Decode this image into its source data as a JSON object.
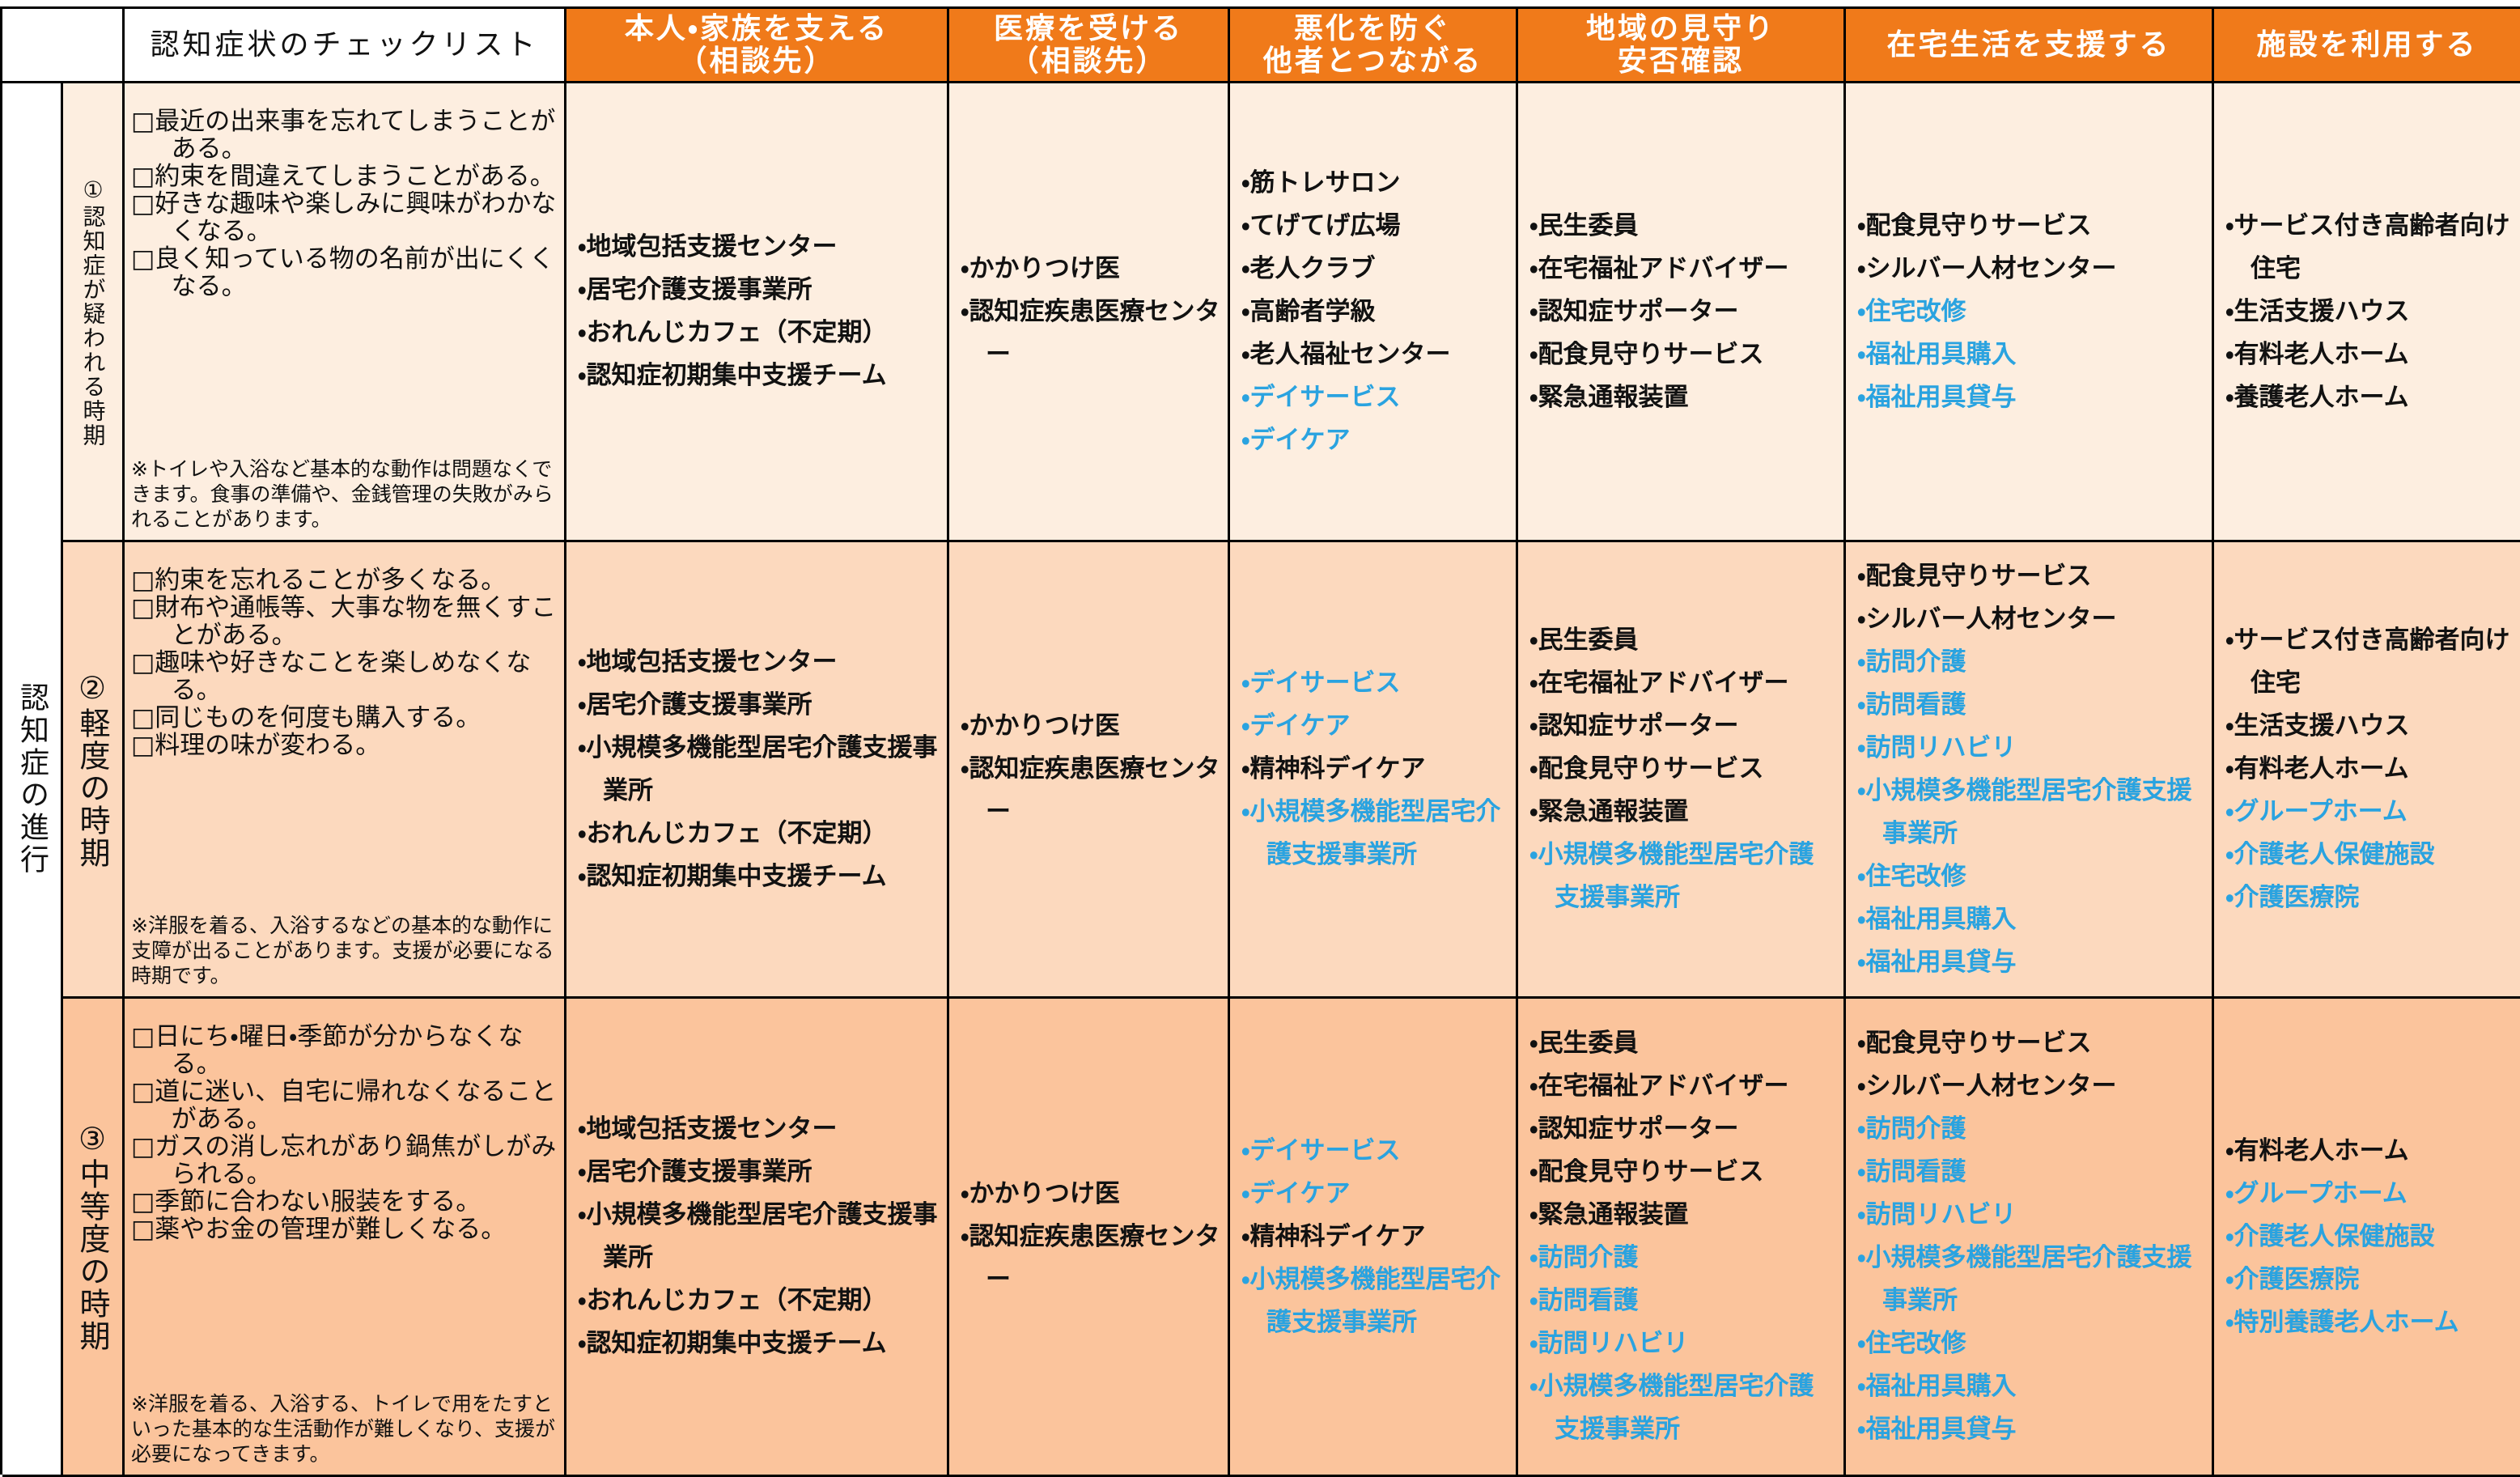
{
  "header": {
    "checklist_title": "認知症状のチェックリスト",
    "columns": [
      [
        "本人・家族を支える",
        "（相談先）"
      ],
      [
        "医療を受ける",
        "（相談先）"
      ],
      [
        "悪化を防ぐ",
        "他者とつながる"
      ],
      [
        "地域の見守り",
        "安否確認"
      ],
      [
        "在宅生活を支援する"
      ],
      [
        "施設を利用する"
      ]
    ]
  },
  "progress_label": "認知症の進行",
  "rows": [
    {
      "stage": "①認知症が疑われる時期",
      "color": "#fdeee0",
      "checklist": [
        "□最近の出来事を忘れてしまうことがある。",
        "□約束を間違えてしまうことがある。",
        "□好きな趣味や楽しみに興味がわかなくなる。",
        "□良く知っている物の名前が出にくくなる。"
      ],
      "note": "※トイレや入浴など基本的な動作は問題なくできます。食事の準備や、金銭管理の失敗がみられることがあります。",
      "cells": [
        [
          {
            "text": "・地域包括支援センター",
            "color": "#111111"
          },
          {
            "text": "・居宅介護支援事業所",
            "color": "#111111"
          },
          {
            "text": "・おれんじカフェ（不定期）",
            "color": "#111111"
          },
          {
            "text": "・認知症初期集中支援チーム",
            "color": "#111111"
          }
        ],
        [
          {
            "text": "・かかりつけ医",
            "color": "#111111"
          },
          {
            "text": "・認知症疾患医療センター",
            "color": "#111111"
          }
        ],
        [
          {
            "text": "・筋トレサロン",
            "color": "#111111"
          },
          {
            "text": "・てげてげ広場",
            "color": "#111111"
          },
          {
            "text": "・老人クラブ",
            "color": "#111111"
          },
          {
            "text": "・高齢者学級",
            "color": "#111111"
          },
          {
            "text": "・老人福祉センター",
            "color": "#111111"
          },
          {
            "text": "・デイサービス",
            "color": "#2aa3e0"
          },
          {
            "text": "・デイケア",
            "color": "#2aa3e0"
          }
        ],
        [
          {
            "text": "・民生委員",
            "color": "#111111"
          },
          {
            "text": "・在宅福祉アドバイザー",
            "color": "#111111"
          },
          {
            "text": "・認知症サポーター",
            "color": "#111111"
          },
          {
            "text": "・配食見守りサービス",
            "color": "#111111"
          },
          {
            "text": "・緊急通報装置",
            "color": "#111111"
          }
        ],
        [
          {
            "text": "・配食見守りサービス",
            "color": "#111111"
          },
          {
            "text": "・シルバー人材センター",
            "color": "#111111"
          },
          {
            "text": "・住宅改修",
            "color": "#2aa3e0"
          },
          {
            "text": "・福祉用具購入",
            "color": "#2aa3e0"
          },
          {
            "text": "・福祉用具貸与",
            "color": "#2aa3e0"
          }
        ],
        [
          {
            "text": "・サービス付き高齢者向け住宅",
            "color": "#111111"
          },
          {
            "text": "・生活支援ハウス",
            "color": "#111111"
          },
          {
            "text": "・有料老人ホーム",
            "color": "#111111"
          },
          {
            "text": "・養護老人ホーム",
            "color": "#111111"
          }
        ]
      ]
    },
    {
      "stage": "②軽度の時期",
      "color": "#fcd9be",
      "checklist": [
        "□約束を忘れることが多くなる。",
        "□財布や通帳等、大事な物を無くすことがある。",
        "□趣味や好きなことを楽しめなくなる。",
        "□同じものを何度も購入する。",
        "□料理の味が変わる。"
      ],
      "note": "※洋服を着る、入浴するなどの基本的な動作に支障が出ることがあります。支援が必要になる時期です。",
      "cells": [
        [
          {
            "text": "・地域包括支援センター",
            "color": "#111111"
          },
          {
            "text": "・居宅介護支援事業所",
            "color": "#111111"
          },
          {
            "text": "・小規模多機能型居宅介護支援事業所",
            "color": "#111111"
          },
          {
            "text": "・おれんじカフェ（不定期）",
            "color": "#111111"
          },
          {
            "text": "・認知症初期集中支援チーム",
            "color": "#111111"
          }
        ],
        [
          {
            "text": "・かかりつけ医",
            "color": "#111111"
          },
          {
            "text": "・認知症疾患医療センター",
            "color": "#111111"
          }
        ],
        [
          {
            "text": "・デイサービス",
            "color": "#2aa3e0"
          },
          {
            "text": "・デイケア",
            "color": "#2aa3e0"
          },
          {
            "text": "・精神科デイケア",
            "color": "#111111"
          },
          {
            "text": "・小規模多機能型居宅介護支援事業所",
            "color": "#2aa3e0"
          }
        ],
        [
          {
            "text": "・民生委員",
            "color": "#111111"
          },
          {
            "text": "・在宅福祉アドバイザー",
            "color": "#111111"
          },
          {
            "text": "・認知症サポーター",
            "color": "#111111"
          },
          {
            "text": "・配食見守りサービス",
            "color": "#111111"
          },
          {
            "text": "・緊急通報装置",
            "color": "#111111"
          },
          {
            "text": "・小規模多機能型居宅介護支援事業所",
            "color": "#2aa3e0"
          }
        ],
        [
          {
            "text": "・配食見守りサービス",
            "color": "#111111"
          },
          {
            "text": "・シルバー人材センター",
            "color": "#111111"
          },
          {
            "text": "・訪問介護",
            "color": "#2aa3e0"
          },
          {
            "text": "・訪問看護",
            "color": "#2aa3e0"
          },
          {
            "text": "・訪問リハビリ",
            "color": "#2aa3e0"
          },
          {
            "text": "・小規模多機能型居宅介護支援事業所",
            "color": "#2aa3e0"
          },
          {
            "text": "・住宅改修",
            "color": "#2aa3e0"
          },
          {
            "text": "・福祉用具購入",
            "color": "#2aa3e0"
          },
          {
            "text": "・福祉用具貸与",
            "color": "#2aa3e0"
          }
        ],
        [
          {
            "text": "・サービス付き高齢者向け住宅",
            "color": "#111111"
          },
          {
            "text": "・生活支援ハウス",
            "color": "#111111"
          },
          {
            "text": "・有料老人ホーム",
            "color": "#111111"
          },
          {
            "text": "・グループホーム",
            "color": "#2aa3e0"
          },
          {
            "text": "・介護老人保健施設",
            "color": "#2aa3e0"
          },
          {
            "text": "・介護医療院",
            "color": "#2aa3e0"
          }
        ]
      ]
    },
    {
      "stage": "③中等度の時期",
      "color": "#fbc49c",
      "checklist": [
        "□日にち・曜日・季節が分からなくなる。",
        "□道に迷い、自宅に帰れなくなることがある。",
        "□ガスの消し忘れがあり鍋焦がしがみられる。",
        "□季節に合わない服装をする。",
        "□薬やお金の管理が難しくなる。"
      ],
      "note": "※洋服を着る、入浴する、トイレで用をたすといった基本的な生活動作が難しくなり、支援が必要になってきます。",
      "cells": [
        [
          {
            "text": "・地域包括支援センター",
            "color": "#111111"
          },
          {
            "text": "・居宅介護支援事業所",
            "color": "#111111"
          },
          {
            "text": "・小規模多機能型居宅介護支援事業所",
            "color": "#111111"
          },
          {
            "text": "・おれんじカフェ（不定期）",
            "color": "#111111"
          },
          {
            "text": "・認知症初期集中支援チーム",
            "color": "#111111"
          }
        ],
        [
          {
            "text": "・かかりつけ医",
            "color": "#111111"
          },
          {
            "text": "・認知症疾患医療センター",
            "color": "#111111"
          }
        ],
        [
          {
            "text": "・デイサービス",
            "color": "#2aa3e0"
          },
          {
            "text": "・デイケア",
            "color": "#2aa3e0"
          },
          {
            "text": "・精神科デイケア",
            "color": "#111111"
          },
          {
            "text": "・小規模多機能型居宅介護支援事業所",
            "color": "#2aa3e0"
          }
        ],
        [
          {
            "text": "・民生委員",
            "color": "#111111"
          },
          {
            "text": "・在宅福祉アドバイザー",
            "color": "#111111"
          },
          {
            "text": "・認知症サポーター",
            "color": "#111111"
          },
          {
            "text": "・配食見守りサービス",
            "color": "#111111"
          },
          {
            "text": "・緊急通報装置",
            "color": "#111111"
          },
          {
            "text": "・訪問介護",
            "color": "#2aa3e0"
          },
          {
            "text": "・訪問看護",
            "color": "#2aa3e0"
          },
          {
            "text": "・訪問リハビリ",
            "color": "#2aa3e0"
          },
          {
            "text": "・小規模多機能型居宅介護支援事業所",
            "color": "#2aa3e0"
          }
        ],
        [
          {
            "text": "・配食見守りサービス",
            "color": "#111111"
          },
          {
            "text": "・シルバー人材センター",
            "color": "#111111"
          },
          {
            "text": "・訪問介護",
            "color": "#2aa3e0"
          },
          {
            "text": "・訪問看護",
            "color": "#2aa3e0"
          },
          {
            "text": "・訪問リハビリ",
            "color": "#2aa3e0"
          },
          {
            "text": "・小規模多機能型居宅介護支援事業所",
            "color": "#2aa3e0"
          },
          {
            "text": "・住宅改修",
            "color": "#2aa3e0"
          },
          {
            "text": "・福祉用具購入",
            "color": "#2aa3e0"
          },
          {
            "text": "・福祉用具貸与",
            "color": "#2aa3e0"
          }
        ],
        [
          {
            "text": "・有料老人ホーム",
            "color": "#111111"
          },
          {
            "text": "・グループホーム",
            "color": "#2aa3e0"
          },
          {
            "text": "・介護老人保健施設",
            "color": "#2aa3e0"
          },
          {
            "text": "・介護医療院",
            "color": "#2aa3e0"
          },
          {
            "text": "・特別養護老人ホーム",
            "color": "#2aa3e0"
          }
        ]
      ]
    }
  ]
}
